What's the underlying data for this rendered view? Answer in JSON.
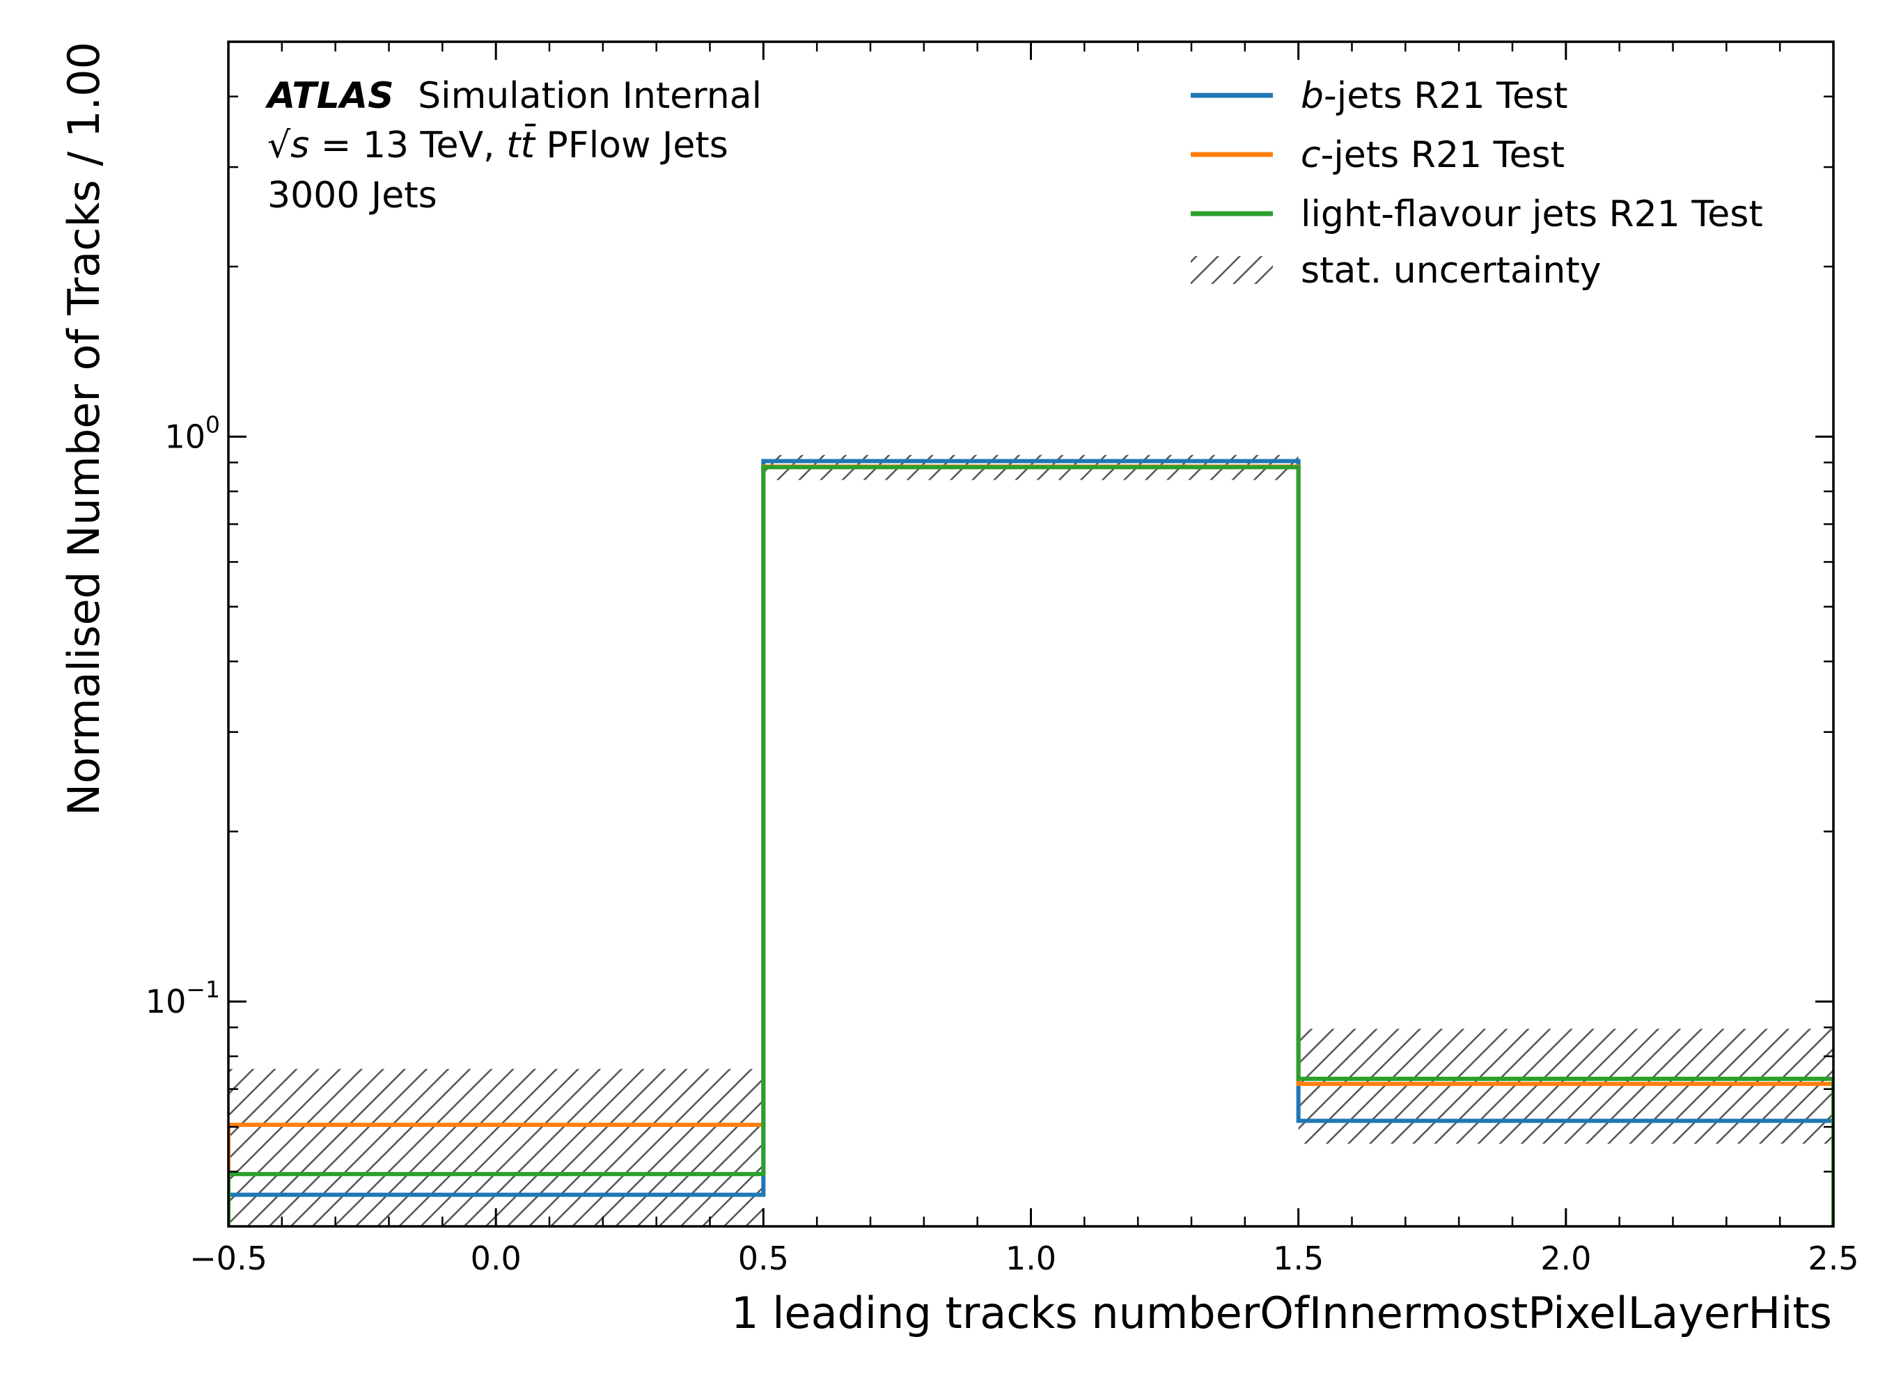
{
  "chart_data": {
    "type": "histogram",
    "xlabel": "1 leading tracks numberOfInnermostPixelLayerHits",
    "ylabel": "Normalised Number of Tracks / 1.00",
    "xlim": [
      -0.5,
      2.5
    ],
    "ylim": [
      0.04,
      5.0
    ],
    "yscale": "log",
    "x_ticks": [
      -0.5,
      0.0,
      0.5,
      1.0,
      1.5,
      2.0,
      2.5
    ],
    "x_tick_labels": [
      "−0.5",
      "0.0",
      "0.5",
      "1.0",
      "1.5",
      "2.0",
      "2.5"
    ],
    "y_ticks": [
      0.1,
      1.0
    ],
    "y_tick_labels": [
      {
        "base": "10",
        "exp": "−1"
      },
      {
        "base": "10",
        "exp": "0"
      }
    ],
    "bin_edges": [
      -0.5,
      0.5,
      1.5,
      2.5
    ],
    "series": [
      {
        "name": "b-jets R21 Test",
        "name_italic": "b",
        "name_rest": "-jets R21 Test",
        "color": "#1f77b4",
        "values": [
          0.0455,
          0.905,
          0.0615
        ]
      },
      {
        "name": "c-jets R21 Test",
        "name_italic": "c",
        "name_rest": "-jets R21 Test",
        "color": "#ff7f0e",
        "values": [
          0.0605,
          0.885,
          0.0715
        ]
      },
      {
        "name": "light-flavour jets R21 Test",
        "name_italic": "",
        "name_rest": "light-flavour jets R21 Test",
        "color": "#2ca02c",
        "values": [
          0.0495,
          0.883,
          0.073
        ]
      }
    ],
    "uncertainty": {
      "name": "stat. uncertainty",
      "color": "#555555",
      "bands": [
        [
          0.04,
          0.076
        ],
        [
          0.838,
          0.928
        ],
        [
          0.056,
          0.0895
        ]
      ]
    },
    "legend_position": "top-right",
    "grid": false
  },
  "annotations": {
    "atlas": "ATLAS",
    "label": "Simulation Internal",
    "energy_prefix": "√",
    "energy_s": "s",
    "energy_mid": " = 13 TeV, ",
    "energy_t1": "t",
    "energy_t2": "t̄",
    "energy_suffix": " PFlow Jets",
    "njets": "3000 Jets"
  }
}
